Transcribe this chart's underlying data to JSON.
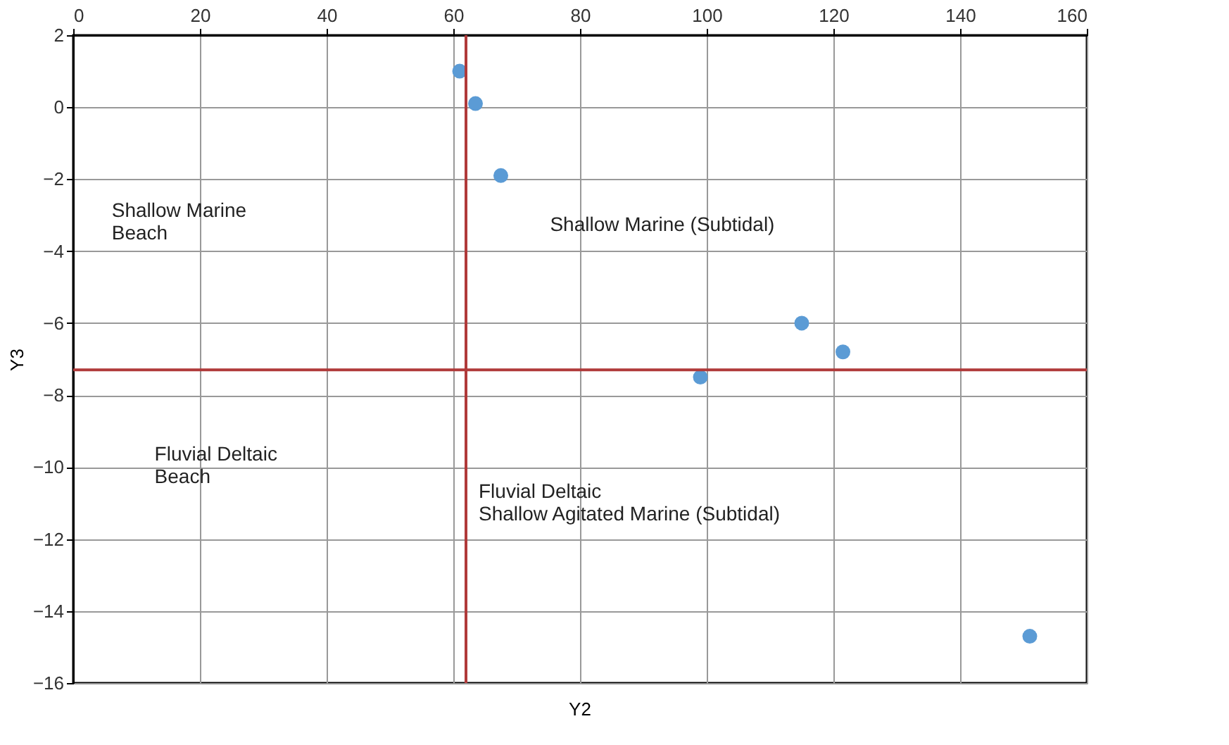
{
  "chart_data": {
    "type": "scatter",
    "xlabel": "Y2",
    "ylabel": "Y3",
    "x": [
      61,
      63.5,
      67.5,
      99,
      115,
      121.5,
      151
    ],
    "series": [
      {
        "color": "#5b9bd5",
        "values": [
          1.0,
          0.1,
          -1.9,
          -7.5,
          -6.0,
          -6.8,
          -14.7
        ]
      }
    ],
    "xlim": [
      0,
      160
    ],
    "xticks": [
      0,
      20,
      40,
      60,
      80,
      100,
      120,
      140,
      160
    ],
    "ylim": [
      -16,
      2
    ],
    "yticks": [
      -16,
      -14,
      -12,
      -10,
      -8,
      -6,
      -4,
      -2,
      0,
      2
    ],
    "grid": true,
    "marker": "circle",
    "ref_lines": [
      {
        "axis": "x",
        "value": 62,
        "color": "#b03a3a"
      },
      {
        "axis": "y",
        "value": -7.3,
        "color": "#b03a3a"
      }
    ],
    "annotations": [
      "Shallow Marine\nBeach",
      "Shallow Marine (Subtidal)",
      "Fluvial Deltaic\nBeach",
      "Fluvial Deltaic\nShallow Agitated Marine (Subtidal)"
    ]
  }
}
